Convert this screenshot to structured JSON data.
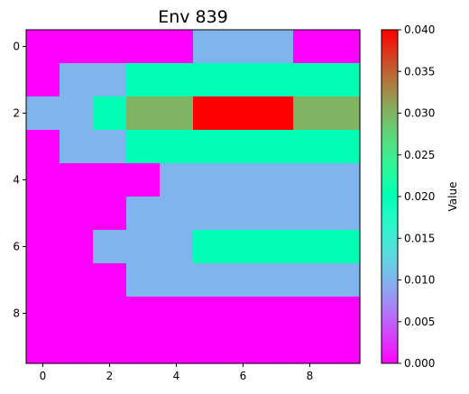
{
  "chart_data": {
    "type": "heatmap",
    "title": "Env 839",
    "colorbar_label": "Value",
    "colormap": "rainbow",
    "vmin": 0.0,
    "vmax": 0.04,
    "x_ticks": [
      0,
      2,
      4,
      6,
      8
    ],
    "y_ticks": [
      0,
      2,
      4,
      6,
      8
    ],
    "colorbar_ticks": [
      "0.000",
      "0.005",
      "0.010",
      "0.015",
      "0.020",
      "0.025",
      "0.030",
      "0.035",
      "0.040"
    ],
    "grid": false,
    "values": [
      [
        0,
        0,
        0,
        0,
        0,
        0.01,
        0.01,
        0.01,
        0,
        0
      ],
      [
        0,
        0.01,
        0.01,
        0.02,
        0.02,
        0.02,
        0.02,
        0.02,
        0.02,
        0.02
      ],
      [
        0.01,
        0.01,
        0.02,
        0.03,
        0.03,
        0.04,
        0.04,
        0.04,
        0.03,
        0.03
      ],
      [
        0,
        0.01,
        0.01,
        0.02,
        0.02,
        0.02,
        0.02,
        0.02,
        0.02,
        0.02
      ],
      [
        0,
        0,
        0,
        0,
        0.01,
        0.01,
        0.01,
        0.01,
        0.01,
        0.01
      ],
      [
        0,
        0,
        0,
        0.01,
        0.01,
        0.01,
        0.01,
        0.01,
        0.01,
        0.01
      ],
      [
        0,
        0,
        0.01,
        0.01,
        0.01,
        0.02,
        0.02,
        0.02,
        0.02,
        0.02
      ],
      [
        0,
        0,
        0,
        0.01,
        0.01,
        0.01,
        0.01,
        0.01,
        0.01,
        0.01
      ],
      [
        0,
        0,
        0,
        0,
        0,
        0,
        0,
        0,
        0,
        0
      ],
      [
        0,
        0,
        0,
        0,
        0,
        0,
        0,
        0,
        0,
        0
      ]
    ]
  }
}
